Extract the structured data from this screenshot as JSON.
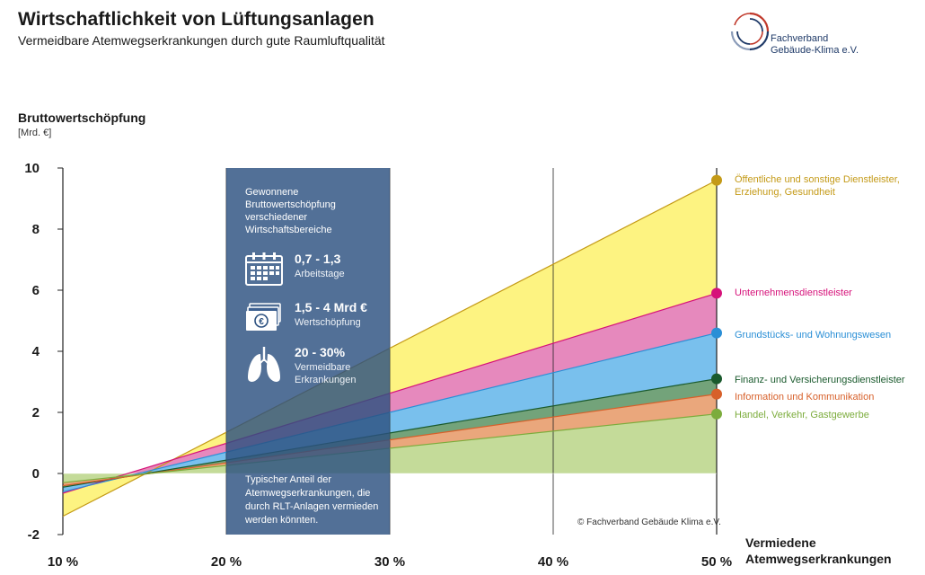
{
  "header": {
    "title": "Wirtschaftlichkeit von Lüftungsanlagen",
    "subtitle": "Vermeidbare Atemwegserkrankungen durch gute Raumluftqualität"
  },
  "logo": {
    "line1": "Fachverband",
    "line2": "Gebäude-Klima e.V.",
    "color_primary": "#1f3a68",
    "color_accent": "#c0392b"
  },
  "infobox": {
    "heading": "Gewonnene Bruttowertschöpfung verschiedener Wirtschaftsbereiche",
    "items": [
      {
        "icon": "calendar-icon",
        "value": "0,7 - 1,3",
        "label": "Arbeitstage"
      },
      {
        "icon": "banknote-icon",
        "value": "1,5 - 4 Mrd €",
        "label": "Wertschöpfung"
      },
      {
        "icon": "lungs-icon",
        "value": "20 - 30%",
        "label": "Vermeidbare Erkrankungen"
      }
    ],
    "footer": "Typischer Anteil der Atemwegserkrankungen, die durch RLT-Anlagen vermieden werden könnten.",
    "color": "#2c5180"
  },
  "copyright": "© Fachverband Gebäude Klima e.V.",
  "chart_data": {
    "type": "area",
    "ylabel": "Bruttowertschöpfung",
    "yunit": "[Mrd. €]",
    "xlabel_line1": "Vermiedene",
    "xlabel_line2": "Atemwegserkrankungen",
    "x": [
      10,
      50
    ],
    "x_ticks": [
      "10 %",
      "20 %",
      "30 %",
      "40 %",
      "50 %"
    ],
    "x_tick_values": [
      10,
      20,
      30,
      40,
      50
    ],
    "y_ticks": [
      "-2",
      "0",
      "2",
      "4",
      "6",
      "8",
      "10"
    ],
    "y_tick_values": [
      -2,
      0,
      2,
      4,
      6,
      8,
      10
    ],
    "xlim": [
      10,
      50
    ],
    "ylim": [
      -2,
      10
    ],
    "grid": "vertical",
    "highlight_range": [
      20,
      30
    ],
    "series": [
      {
        "name": "Öffentliche und sonstige Dienstleister, Erziehung, Gesundheit",
        "values": [
          -1.4,
          9.6
        ],
        "fill": "#fdf27a",
        "line": "#c49a17",
        "dot": "#c49a17"
      },
      {
        "name": "Unternehmensdienstleister",
        "values": [
          -0.65,
          5.9
        ],
        "fill": "#e583b9",
        "line": "#d6127a",
        "dot": "#d6127a"
      },
      {
        "name": "Grundstücks- und Wohnungswesen",
        "values": [
          -0.6,
          4.6
        ],
        "fill": "#72bdec",
        "line": "#2a8fd6",
        "dot": "#2a8fd6"
      },
      {
        "name": "Finanz- und Versicherungsdienstleister",
        "values": [
          -0.45,
          3.1
        ],
        "fill": "#6c9e73",
        "line": "#1a5a2d",
        "dot": "#1a5a2d"
      },
      {
        "name": "Information und Kommunikation",
        "values": [
          -0.4,
          2.6
        ],
        "fill": "#e9a275",
        "line": "#d7602a",
        "dot": "#d7602a"
      },
      {
        "name": "Handel, Verkehr, Gastgewerbe",
        "values": [
          -0.3,
          1.95
        ],
        "fill": "#c1d994",
        "line": "#7cac3c",
        "dot": "#7cac3c"
      }
    ]
  }
}
